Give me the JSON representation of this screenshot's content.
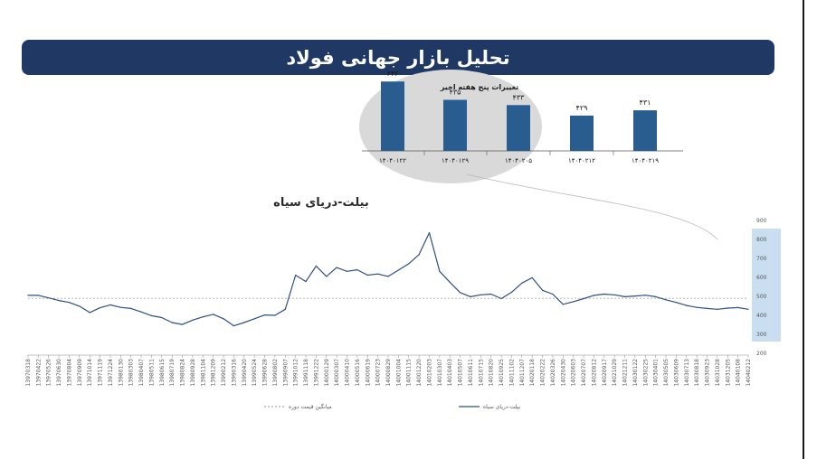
{
  "page": {
    "title": "تحلیل بازار جهانی فولاد"
  },
  "colors": {
    "navy": "#1f3864",
    "line": "#2e4f82",
    "bar": "#2a5d8f",
    "bubble": "#d9d9d9",
    "band": "#c9dff1",
    "avg": "#999999"
  },
  "chart_data": [
    {
      "type": "bar",
      "title": "تغییرات پنج هفته اخیر",
      "categories": [
        "۱۴۰۴۰۱۲۲",
        "۱۴۰۴۰۱۲۹",
        "۱۴۰۴۰۲۰۵",
        "۱۴۰۴۰۲۱۲",
        "۱۴۰۴۰۲۱۹"
      ],
      "values": [
        442,
        435,
        433,
        429,
        431
      ],
      "value_labels": [
        "۴۴۲",
        "۴۳۵",
        "۴۳۳",
        "۴۲۹",
        "۴۳۱"
      ]
    },
    {
      "type": "line",
      "title": "بیلت-دریای سیاه",
      "ylim": [
        200,
        900
      ],
      "yticks": [
        200,
        300,
        400,
        500,
        600,
        700,
        800,
        900
      ],
      "grid": false,
      "legend_position": "bottom",
      "legend": {
        "series": "بیلت-دریای سیاه",
        "average": "میانگین قیمت دوره"
      },
      "average": 490,
      "x_labels": [
        "13970318",
        "13970422",
        "13970526",
        "13970630",
        "13970804",
        "13970909",
        "13971014",
        "13971119",
        "13971224",
        "13980130",
        "13980303",
        "13980407",
        "13980511",
        "13980615",
        "13980719",
        "13980824",
        "13980928",
        "13981104",
        "13981209",
        "13990212",
        "13990316",
        "13990420",
        "13990524",
        "13990628",
        "13990802",
        "13990907",
        "13991012",
        "13991118",
        "13991222",
        "14000129",
        "14000307",
        "14000410",
        "14000516",
        "14000619",
        "14000723",
        "14000829",
        "14001004",
        "14001115",
        "14001220",
        "14010203",
        "14010307",
        "14010403",
        "14010507",
        "14010611",
        "14010715",
        "14010820",
        "14010925",
        "14011102",
        "14011207",
        "14020118",
        "14020222",
        "14020326",
        "14020430",
        "14020603",
        "14020707",
        "14020812",
        "14020917",
        "14021029",
        "14021211",
        "14030122",
        "14030225",
        "14030401",
        "14030505",
        "14030609",
        "14030713",
        "14030818",
        "14030923",
        "14031028",
        "14031205",
        "14040108",
        "14040212"
      ],
      "values": [
        505,
        505,
        492,
        478,
        468,
        448,
        415,
        440,
        455,
        442,
        436,
        418,
        398,
        388,
        362,
        352,
        375,
        392,
        405,
        382,
        345,
        362,
        382,
        402,
        400,
        432,
        612,
        578,
        660,
        605,
        652,
        632,
        640,
        612,
        618,
        605,
        638,
        672,
        720,
        835,
        632,
        575,
        520,
        498,
        508,
        512,
        488,
        522,
        570,
        598,
        532,
        512,
        458,
        472,
        488,
        505,
        512,
        508,
        498,
        502,
        506,
        498,
        482,
        468,
        452,
        442,
        436,
        432,
        438,
        441,
        432
      ]
    }
  ]
}
